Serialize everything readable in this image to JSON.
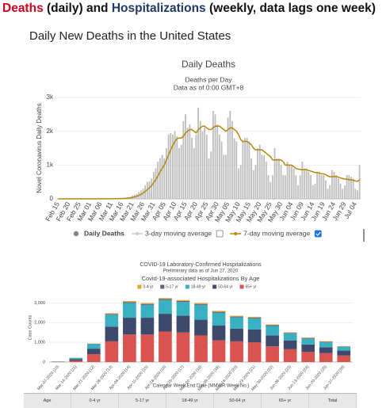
{
  "header": {
    "parts": [
      "Deaths",
      " (daily) and ",
      "Hospitalizations",
      " (weekly, data lags one week)"
    ],
    "subtitle": "Daily New Deaths in the United States"
  },
  "chart_data": [
    {
      "type": "bar",
      "title": "Daily Deaths",
      "subtitle": "Deaths per Day",
      "note": "Data as of 0:00 GMT+8",
      "y_label": "Novel Coronavirus Daily Deaths",
      "grid": true,
      "ylim": [
        0,
        3000
      ],
      "yticks": [
        0,
        {
          "value": 1000,
          "label": "1k"
        },
        {
          "value": 2000,
          "label": "2k"
        },
        {
          "value": 3000,
          "label": "3k"
        }
      ],
      "categories": [
        "Feb 15",
        null,
        null,
        null,
        null,
        "Feb 20",
        null,
        null,
        null,
        null,
        "Feb 25",
        null,
        null,
        null,
        null,
        "Mar 01",
        null,
        null,
        null,
        null,
        "Mar 06",
        null,
        null,
        null,
        null,
        "Mar 11",
        null,
        null,
        null,
        null,
        "Mar 16",
        null,
        null,
        null,
        null,
        "Mar 21",
        null,
        null,
        null,
        null,
        "Mar 26",
        null,
        null,
        null,
        null,
        "Mar 31",
        null,
        null,
        null,
        null,
        "Apr 05",
        null,
        null,
        null,
        null,
        "Apr 10",
        null,
        null,
        null,
        null,
        "Apr 15",
        null,
        null,
        null,
        null,
        "Apr 20",
        null,
        null,
        null,
        null,
        "Apr 25",
        null,
        null,
        null,
        null,
        "Apr 30",
        null,
        null,
        null,
        null,
        "May 05",
        null,
        null,
        null,
        null,
        "May 10",
        null,
        null,
        null,
        null,
        "May 15",
        null,
        null,
        null,
        null,
        "May 20",
        null,
        null,
        null,
        null,
        "May 25",
        null,
        null,
        null,
        null,
        "May 30",
        null,
        null,
        null,
        null,
        "Jun 04",
        null,
        null,
        null,
        null,
        "Jun 09",
        null,
        null,
        null,
        null,
        "Jun 14",
        null,
        null,
        null,
        null,
        "Jun 19",
        null,
        null,
        null,
        null,
        "Jun 24",
        null,
        null,
        null,
        null,
        "Jun 29",
        null,
        null,
        null,
        null,
        "Jul 04",
        null,
        null
      ],
      "series": [
        {
          "name": "Daily Deaths",
          "type": "bar",
          "color": "#bdbdbd",
          "visible": true,
          "values": [
            0,
            0,
            0,
            0,
            0,
            0,
            0,
            0,
            0,
            0,
            0,
            0,
            0,
            0,
            0,
            1,
            1,
            5,
            2,
            1,
            2,
            3,
            4,
            3,
            4,
            7,
            10,
            10,
            8,
            14,
            22,
            25,
            30,
            50,
            60,
            100,
            120,
            150,
            200,
            250,
            300,
            400,
            500,
            520,
            600,
            800,
            900,
            1100,
            1200,
            1300,
            1200,
            1500,
            1900,
            1950,
            1900,
            2000,
            1850,
            1500,
            1600,
            2300,
            2500,
            2100,
            2200,
            1800,
            1500,
            1900,
            2700,
            2300,
            2000,
            2100,
            1900,
            1200,
            1400,
            2600,
            2500,
            2200,
            1900,
            1700,
            1300,
            1300,
            2400,
            2600,
            2300,
            1800,
            1700,
            900,
            1000,
            1700,
            1800,
            1800,
            1700,
            1200,
            850,
            1000,
            1500,
            1600,
            1300,
            1300,
            1100,
            700,
            500,
            700,
            1500,
            1200,
            1200,
            1000,
            700,
            700,
            1100,
            1000,
            1000,
            900,
            700,
            400,
            700,
            1100,
            900,
            900,
            800,
            700,
            400,
            450,
            800,
            800,
            700,
            700,
            550,
            300,
            400,
            850,
            800,
            700,
            600,
            450,
            300,
            400,
            700,
            700,
            650,
            600,
            300,
            250,
            1000
          ]
        },
        {
          "name": "3-day moving average",
          "type": "line",
          "color": "#cccccc",
          "visible": false
        },
        {
          "name": "7-day moving average",
          "type": "line",
          "color": "#b8860b",
          "visible": true,
          "values": [
            0,
            0,
            0,
            0,
            0,
            0,
            0,
            0,
            0,
            0,
            0,
            0,
            0,
            0,
            0,
            0,
            0,
            1,
            1,
            2,
            2,
            2,
            3,
            3,
            3,
            4,
            5,
            6,
            7,
            8,
            11,
            13,
            17,
            23,
            30,
            44,
            58,
            75,
            100,
            130,
            170,
            220,
            270,
            330,
            390,
            480,
            570,
            680,
            800,
            900,
            1000,
            1150,
            1300,
            1450,
            1580,
            1700,
            1780,
            1800,
            1800,
            1850,
            1950,
            2000,
            2050,
            2050,
            2000,
            1950,
            2050,
            2100,
            2150,
            2150,
            2100,
            2050,
            2050,
            2100,
            2150,
            2150,
            2150,
            2100,
            2050,
            2000,
            2050,
            2100,
            2100,
            2050,
            2000,
            1900,
            1750,
            1700,
            1700,
            1700,
            1650,
            1600,
            1500,
            1450,
            1450,
            1450,
            1450,
            1400,
            1350,
            1300,
            1250,
            1150,
            1150,
            1150,
            1150,
            1150,
            1100,
            1000,
            1000,
            1000,
            1000,
            950,
            900,
            880,
            870,
            860,
            870,
            860,
            840,
            820,
            800,
            780,
            780,
            760,
            740,
            740,
            720,
            680,
            650,
            660,
            660,
            660,
            640,
            620,
            600,
            590,
            580,
            570,
            560,
            550,
            530,
            520,
            560
          ]
        }
      ]
    },
    {
      "type": "stacked_bar",
      "title": "COVID-19 Laboratory-Confirmed Hospitalizations",
      "subtitle": "Preliminary data as of Jun 27, 2020",
      "note": "Covid-19-associated Hospitalizations By Age",
      "y_label": "Case Counts",
      "x_label": "Calendar Week End Date (MMWR Week No.)",
      "grid": true,
      "ylim": [
        0,
        3500
      ],
      "yticks": [
        0,
        {
          "value": 1000,
          "label": "1,000"
        },
        {
          "value": 2000,
          "label": "2,000"
        },
        {
          "value": 3000,
          "label": "3,000"
        }
      ],
      "categories": [
        "Mar-07-2020 (10)",
        "Mar-14-2020 (11)",
        "Mar-21-2020 (12)",
        "Mar-28-2020 (13)",
        "Apr-04-2020 (14)",
        "Apr-11-2020 (15)",
        "Apr-18-2020 (16)",
        "Apr-25-2020 (17)",
        "May-02-2020 (18)",
        "May-09-2020 (19)",
        "May-16-2020 (20)",
        "May-23-2020 (21)",
        "May-30-2020 (22)",
        "Jun-06-2020 (23)",
        "Jun-13-2020 (24)",
        "Jun-20-2020 (25)",
        "Jun-27-2020 (26)"
      ],
      "series": [
        {
          "name": "0-4 yr",
          "color": "#e8a33a",
          "values": [
            2,
            5,
            15,
            40,
            50,
            50,
            50,
            50,
            50,
            50,
            40,
            40,
            40,
            30,
            30,
            30,
            20
          ]
        },
        {
          "name": "5-17 yr",
          "color": "#5b6478",
          "values": [
            2,
            5,
            15,
            40,
            50,
            50,
            50,
            50,
            50,
            50,
            40,
            40,
            40,
            30,
            30,
            30,
            20
          ]
        },
        {
          "name": "18-49 yr",
          "color": "#3ab0c3",
          "values": [
            8,
            60,
            230,
            600,
            750,
            650,
            700,
            700,
            750,
            650,
            570,
            570,
            480,
            350,
            300,
            250,
            190
          ]
        },
        {
          "name": "50-64 yr",
          "color": "#3d4a6b",
          "values": [
            8,
            70,
            280,
            750,
            850,
            850,
            900,
            850,
            800,
            750,
            650,
            650,
            550,
            450,
            370,
            300,
            250
          ]
        },
        {
          "name": "65+ yr",
          "color": "#d9534f",
          "values": [
            10,
            80,
            400,
            1050,
            1400,
            1400,
            1550,
            1500,
            1350,
            1100,
            1050,
            1000,
            800,
            650,
            520,
            450,
            330
          ]
        }
      ]
    }
  ],
  "table": {
    "header": [
      "Age",
      "0-4 yr",
      "5-17 yr",
      "18-49 yr",
      "50-64 yr",
      "65+ yr",
      "Total"
    ]
  }
}
